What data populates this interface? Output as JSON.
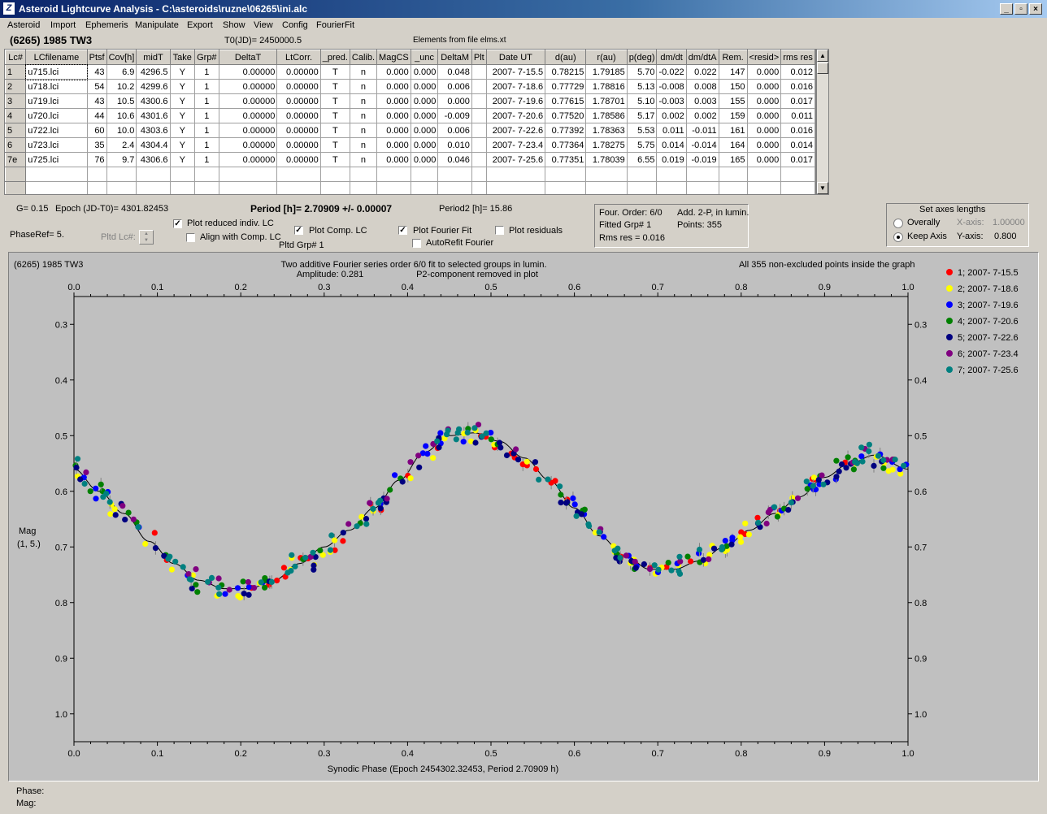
{
  "window": {
    "title": "Asteroid Lightcurve Analysis - C:\\asteroids\\ruzne\\06265\\ini.alc",
    "minimize": "_",
    "maximize": "▫",
    "close": "×"
  },
  "menu": [
    "Asteroid",
    "Import",
    "Ephemeris",
    "Manipulate",
    "Export",
    "Show",
    "View",
    "Config",
    "FourierFit"
  ],
  "header": {
    "asteroid": "(6265) 1985 TW3",
    "t0": "T0(JD)= 2450000.5",
    "elements": "Elements from file elms.xt"
  },
  "table": {
    "columns": [
      "Lc#",
      "LCfilename",
      "Ptsf",
      "Cov[h]",
      "midT",
      "Take",
      "Grp#",
      "DeltaT",
      "LtCorr.",
      "_pred.",
      "Calib.",
      "MagCS",
      "_unc",
      "DeltaM",
      "Plt",
      "Date UT",
      "d(au)",
      "r(au)",
      "p(deg)",
      "dm/dt",
      "dm/dtA",
      "Rem.",
      "<resid>",
      "rms res"
    ],
    "rows": [
      [
        "1",
        "u715.lci",
        "43",
        "6.9",
        "4296.5",
        "Y",
        "1",
        "0.00000",
        "0.00000",
        "T",
        "n",
        "0.000",
        "0.000",
        "0.048",
        "",
        "2007- 7-15.5",
        "0.78215",
        "1.79185",
        "5.70",
        "-0.022",
        "0.022",
        "147",
        "0.000",
        "0.012"
      ],
      [
        "2",
        "u718.lci",
        "54",
        "10.2",
        "4299.6",
        "Y",
        "1",
        "0.00000",
        "0.00000",
        "T",
        "n",
        "0.000",
        "0.000",
        "0.006",
        "",
        "2007- 7-18.6",
        "0.77729",
        "1.78816",
        "5.13",
        "-0.008",
        "0.008",
        "150",
        "0.000",
        "0.016"
      ],
      [
        "3",
        "u719.lci",
        "43",
        "10.5",
        "4300.6",
        "Y",
        "1",
        "0.00000",
        "0.00000",
        "T",
        "n",
        "0.000",
        "0.000",
        "0.000",
        "",
        "2007- 7-19.6",
        "0.77615",
        "1.78701",
        "5.10",
        "-0.003",
        "0.003",
        "155",
        "0.000",
        "0.017"
      ],
      [
        "4",
        "u720.lci",
        "44",
        "10.6",
        "4301.6",
        "Y",
        "1",
        "0.00000",
        "0.00000",
        "T",
        "n",
        "0.000",
        "0.000",
        "-0.009",
        "",
        "2007- 7-20.6",
        "0.77520",
        "1.78586",
        "5.17",
        "0.002",
        "0.002",
        "159",
        "0.000",
        "0.011"
      ],
      [
        "5",
        "u722.lci",
        "60",
        "10.0",
        "4303.6",
        "Y",
        "1",
        "0.00000",
        "0.00000",
        "T",
        "n",
        "0.000",
        "0.000",
        "0.006",
        "",
        "2007- 7-22.6",
        "0.77392",
        "1.78363",
        "5.53",
        "0.011",
        "-0.011",
        "161",
        "0.000",
        "0.016"
      ],
      [
        "6",
        "u723.lci",
        "35",
        "2.4",
        "4304.4",
        "Y",
        "1",
        "0.00000",
        "0.00000",
        "T",
        "n",
        "0.000",
        "0.000",
        "0.010",
        "",
        "2007- 7-23.4",
        "0.77364",
        "1.78275",
        "5.75",
        "0.014",
        "-0.014",
        "164",
        "0.000",
        "0.014"
      ],
      [
        "7e",
        "u725.lci",
        "76",
        "9.7",
        "4306.6",
        "Y",
        "1",
        "0.00000",
        "0.00000",
        "T",
        "n",
        "0.000",
        "0.000",
        "0.046",
        "",
        "2007- 7-25.6",
        "0.77351",
        "1.78039",
        "6.55",
        "0.019",
        "-0.019",
        "165",
        "0.000",
        "0.017"
      ]
    ]
  },
  "info": {
    "g": "G= 0.15",
    "epoch": "Epoch (JD-T0)= 4301.82453",
    "period": "Period [h]= 2.70909 +/- 0.00007",
    "period2": "Period2 [h]= 15.86",
    "phaseref": "PhaseRef= 5.",
    "pltd_lc": "Pltd Lc#:",
    "pltd_grp": "Pltd Grp#  1"
  },
  "options": {
    "plot_reduced": "Plot reduced indiv. LC",
    "align_comp": "Align with Comp. LC",
    "plot_comp": "Plot Comp. LC",
    "plot_fourier": "Plot Fourier Fit",
    "autorefit": "AutoRefit Fourier",
    "plot_residuals": "Plot residuals",
    "checked": {
      "plot_reduced": true,
      "align_comp": false,
      "plot_comp": true,
      "plot_fourier": true,
      "autorefit": false,
      "plot_residuals": false
    }
  },
  "fourier_box": {
    "order": "Four. Order:  6/0",
    "add": "Add. 2-P, in lumin.",
    "fitted": "Fitted Grp# 1",
    "points": "Points: 355",
    "rms": "Rms res      = 0.016"
  },
  "axes_box": {
    "title": "Set axes lengths",
    "overally": "Overally",
    "keep_axis": "Keep Axis",
    "xaxis_label": "X-axis:",
    "xaxis_value": "1.00000",
    "yaxis_label": "Y-axis:",
    "yaxis_value": "0.800",
    "selected": "keep_axis"
  },
  "chart_data": {
    "type": "scatter",
    "title": "(6265) 1985 TW3",
    "subtitle_1": "Two additive Fourier series order 6/0 fit to selected groups in lumin.",
    "subtitle_2": "Amplitude: 0.281",
    "subtitle_3": "P2-component removed in plot",
    "note": "All 355 non-excluded points inside the graph",
    "xlabel": "Synodic Phase (Epoch 2454302.32453, Period 2.70909 h)",
    "ylabel_1": "Mag",
    "ylabel_2": "(1, 5.)",
    "xlim": [
      0.0,
      1.0
    ],
    "ylim": [
      0.25,
      1.05
    ],
    "y_inverted": true,
    "xticks": [
      "0.0",
      "0.1",
      "0.2",
      "0.3",
      "0.4",
      "0.5",
      "0.6",
      "0.7",
      "0.8",
      "0.9",
      "1.0"
    ],
    "yticks": [
      "0.3",
      "0.4",
      "0.5",
      "0.6",
      "0.7",
      "0.8",
      "0.9",
      "1.0"
    ],
    "fit_curve": {
      "x": [
        0.0,
        0.03,
        0.06,
        0.09,
        0.12,
        0.15,
        0.18,
        0.21,
        0.24,
        0.27,
        0.3,
        0.33,
        0.36,
        0.39,
        0.42,
        0.45,
        0.48,
        0.51,
        0.54,
        0.57,
        0.6,
        0.63,
        0.66,
        0.69,
        0.72,
        0.75,
        0.78,
        0.81,
        0.84,
        0.87,
        0.9,
        0.93,
        0.96,
        1.0
      ],
      "y": [
        0.56,
        0.6,
        0.64,
        0.69,
        0.73,
        0.76,
        0.775,
        0.775,
        0.76,
        0.73,
        0.7,
        0.67,
        0.63,
        0.58,
        0.53,
        0.5,
        0.495,
        0.51,
        0.54,
        0.58,
        0.63,
        0.68,
        0.715,
        0.74,
        0.74,
        0.725,
        0.7,
        0.67,
        0.64,
        0.61,
        0.575,
        0.55,
        0.535,
        0.56
      ]
    },
    "series": [
      {
        "name": "1; 2007- 7-15.5",
        "color": "#ff0000",
        "offset": 0.0
      },
      {
        "name": "2; 2007- 7-18.6",
        "color": "#ffff00",
        "offset": 0.004
      },
      {
        "name": "3; 2007- 7-19.6",
        "color": "#0000ff",
        "offset": -0.003
      },
      {
        "name": "4; 2007- 7-20.6",
        "color": "#008000",
        "offset": 0.002
      },
      {
        "name": "5; 2007- 7-22.6",
        "color": "#000080",
        "offset": 0.006
      },
      {
        "name": "6; 2007- 7-23.4",
        "color": "#800080",
        "offset": -0.004
      },
      {
        "name": "7; 2007- 7-25.6",
        "color": "#008080",
        "offset": -0.002
      }
    ],
    "legend": "right"
  },
  "status": {
    "phase": "Phase:",
    "mag": "Mag:"
  }
}
